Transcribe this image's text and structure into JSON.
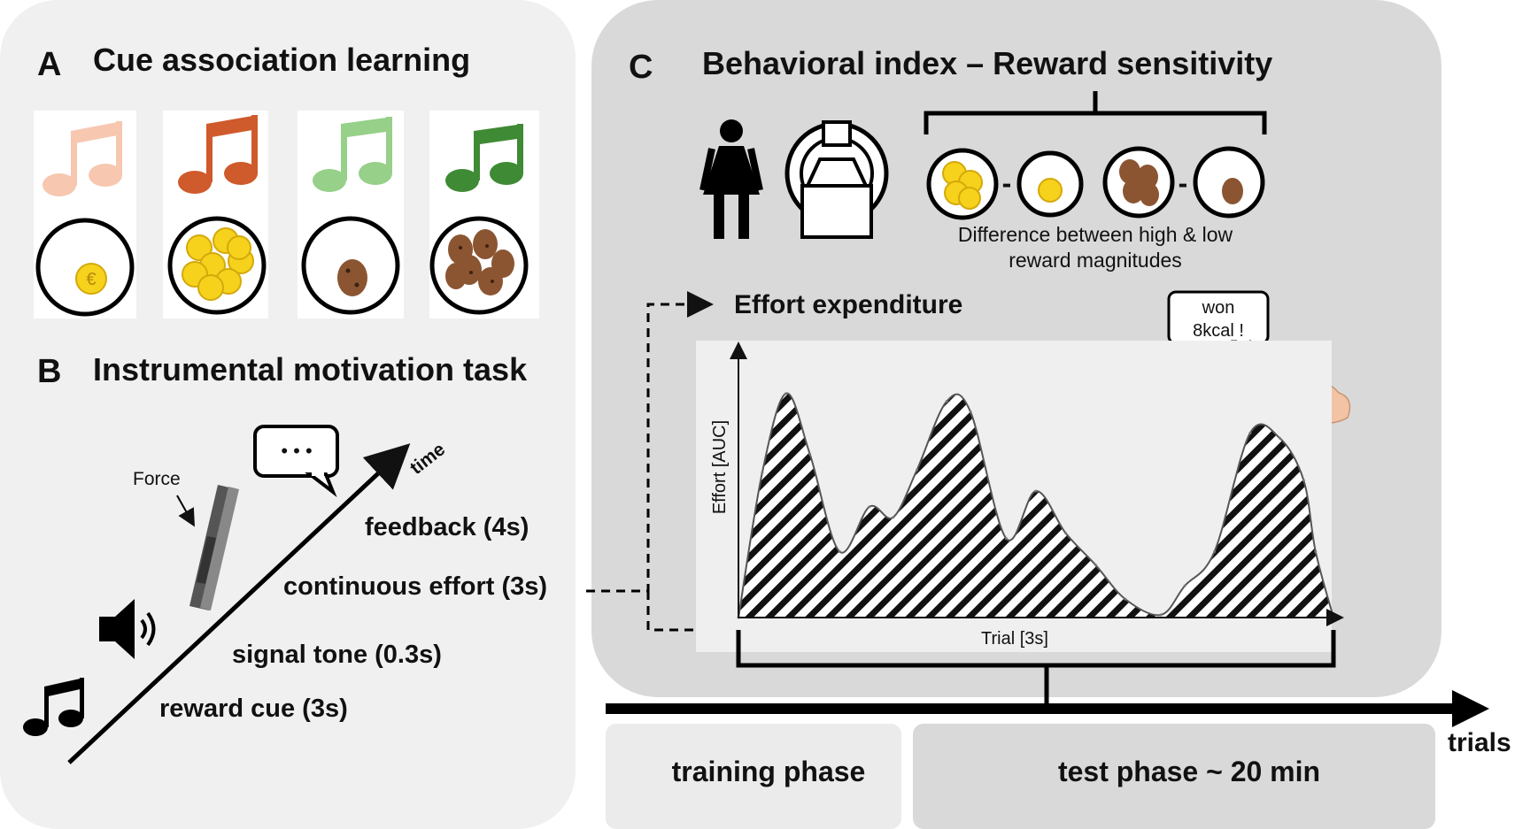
{
  "panels": {
    "a": {
      "letter": "A",
      "title": "Cue association learning"
    },
    "b": {
      "letter": "B",
      "title": "Instrumental motivation task",
      "force_label": "Force",
      "time_label": "time",
      "speech_dots": "• • •",
      "steps": [
        "feedback (4s)",
        "continuous effort (3s)",
        "signal tone (0.3s)",
        "reward cue (3s)"
      ]
    },
    "c": {
      "letter": "C",
      "title": "Behavioral index – Reward sensitivity",
      "minus": "-",
      "difference_line1": "Difference between high & low",
      "difference_line2": "reward magnitudes",
      "effort_title": "Effort expenditure",
      "won_line1": "won",
      "won_line2": "8kcal !",
      "euro_symbol": "€"
    }
  },
  "timeline": {
    "trials_label": "trials",
    "phases": [
      "training phase",
      "test phase ~ 20 min"
    ]
  },
  "colors": {
    "panel_left_bg": "#f0f0f0",
    "panel_right_bg": "#d9d9d9",
    "note_colors": [
      "#f7c7b0",
      "#cf5a2b",
      "#96d089",
      "#3f8a34"
    ],
    "coin": "#f6d21c",
    "cookie": "#8b5532"
  },
  "icons": [
    "music-note-icon",
    "speaker-icon",
    "person-icon",
    "mri-scanner-icon",
    "coin-icon",
    "cookie-icon",
    "flexed-arm-icon",
    "hand-dynamometer-icon"
  ],
  "chart_data": {
    "type": "area",
    "title": "",
    "xlabel": "Trial [3s]",
    "ylabel": "Effort [AUC]",
    "fill": "diagonal hatch (black)",
    "x": [
      0,
      4,
      8,
      12,
      17,
      22,
      26,
      30,
      35,
      39,
      45,
      50,
      55,
      60,
      65,
      71,
      75,
      80,
      86,
      91,
      95,
      97,
      100
    ],
    "y": [
      0,
      55,
      85,
      62,
      25,
      42,
      38,
      56,
      82,
      78,
      30,
      48,
      32,
      20,
      7,
      1,
      12,
      25,
      70,
      68,
      52,
      25,
      0
    ],
    "xlim": [
      0,
      100
    ],
    "ylim": [
      0,
      100
    ]
  }
}
